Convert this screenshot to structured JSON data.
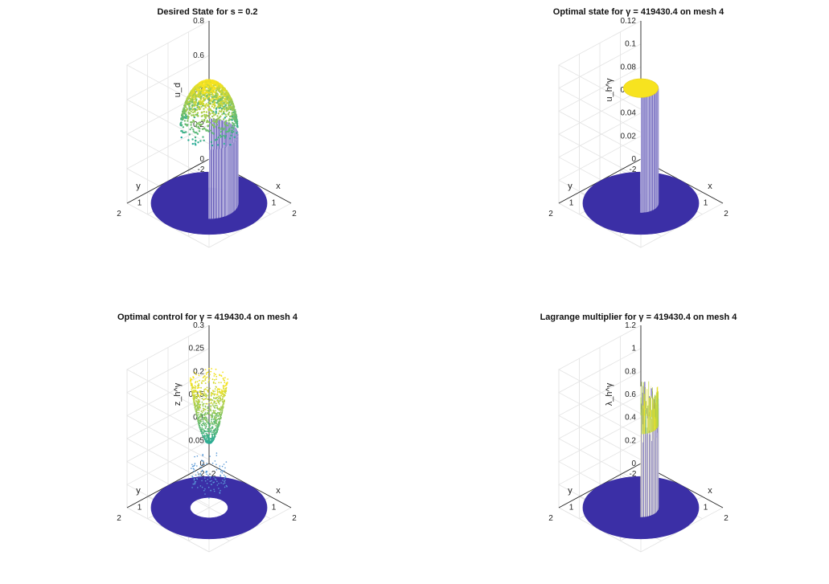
{
  "colors": {
    "low": "#3b2fa6",
    "mid": "#21a99a",
    "high": "#f7e31f",
    "grid": "#e3e3e3",
    "axis": "#262626"
  },
  "chart_data": [
    {
      "type": "surface3d",
      "title": "Desired State for s = 0.2",
      "zlabel": "u_d",
      "xlabel": "x",
      "ylabel": "y",
      "xlim": [
        -2,
        2
      ],
      "ylim": [
        -2,
        2
      ],
      "zlim": [
        0,
        0.8
      ],
      "xticks": [
        "-2",
        "-1",
        "0",
        "1",
        "2"
      ],
      "yticks": [
        "-2",
        "-1",
        "0",
        "1",
        "2"
      ],
      "zticks": [
        "0",
        "0.2",
        "0.4",
        "0.6",
        "0.8"
      ],
      "shape": "dome",
      "disk_radius": 2,
      "feature_radius": 1,
      "peak": 0.7,
      "base_height": 0.4
    },
    {
      "type": "surface3d",
      "title": "Optimal state for γ = 419430.4 on mesh 4",
      "zlabel": "u_h^γ",
      "xlabel": "x",
      "ylabel": "y",
      "xlim": [
        -2,
        2
      ],
      "ylim": [
        -2,
        2
      ],
      "zlim": [
        0,
        0.12
      ],
      "xticks": [
        "-2",
        "-1",
        "0",
        "1",
        "2"
      ],
      "yticks": [
        "-2",
        "-1",
        "0",
        "1",
        "2"
      ],
      "zticks": [
        "0",
        "0.02",
        "0.04",
        "0.06",
        "0.08",
        "0.1",
        "0.12"
      ],
      "shape": "cylinder",
      "disk_radius": 2,
      "feature_radius": 0.6,
      "peak": 0.1
    },
    {
      "type": "surface3d",
      "title": "Optimal control for γ = 419430.4 on mesh 4",
      "zlabel": "z_h^γ",
      "xlabel": "x",
      "ylabel": "y",
      "xlim": [
        -2,
        2
      ],
      "ylim": [
        -2,
        2
      ],
      "zlim": [
        0,
        0.3
      ],
      "xticks": [
        "-2",
        "-1",
        "0",
        "1",
        "2"
      ],
      "yticks": [
        "-2",
        "-1",
        "0",
        "1",
        "2"
      ],
      "zticks": [
        "0",
        "0.05",
        "0.1",
        "0.15",
        "0.2",
        "0.25",
        "0.3"
      ],
      "shape": "bowl",
      "disk_radius": 2,
      "hole_radius": 0.65,
      "bowl_min": 0.14,
      "bowl_max": 0.28
    },
    {
      "type": "surface3d",
      "title": "Lagrange multiplier for γ = 419430.4 on mesh 4",
      "zlabel": "λ_h^γ",
      "xlabel": "x",
      "ylabel": "y",
      "xlim": [
        -2,
        2
      ],
      "ylim": [
        -2,
        2
      ],
      "zlim": [
        0,
        1.2
      ],
      "xticks": [
        "-2",
        "-1",
        "0",
        "1",
        "2"
      ],
      "yticks": [
        "-2",
        "-1",
        "0",
        "1",
        "2"
      ],
      "zticks": [
        "0",
        "0.2",
        "0.4",
        "0.6",
        "0.8",
        "1",
        "1.2"
      ],
      "shape": "spiky",
      "disk_radius": 2,
      "feature_radius": 0.6,
      "peak": 0.9
    }
  ]
}
